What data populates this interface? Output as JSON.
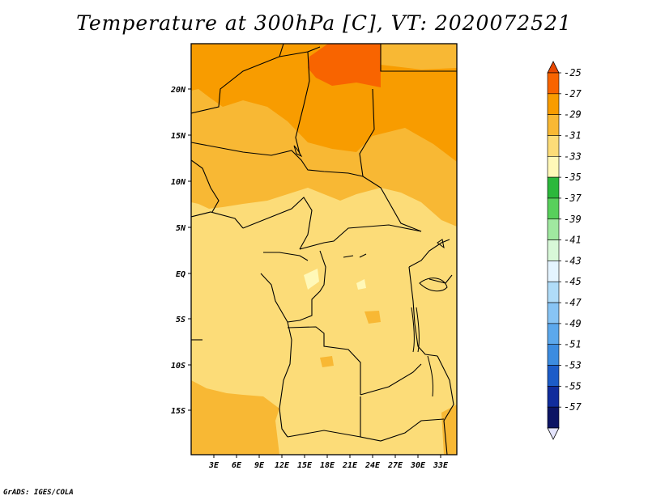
{
  "title": "Temperature at 300hPa [C], VT: 2020072521",
  "footer": "GrADS: IGES/COLA",
  "map": {
    "lon_labels": [
      "3E",
      "6E",
      "9E",
      "12E",
      "15E",
      "18E",
      "21E",
      "24E",
      "27E",
      "30E",
      "33E"
    ],
    "lat_labels": [
      "20N",
      "15N",
      "10N",
      "5N",
      "EQ",
      "5S",
      "10S",
      "15S"
    ]
  },
  "legend": {
    "levels": [
      {
        "label": "-25",
        "color": "#e84800"
      },
      {
        "label": "-27",
        "color": "#f86400"
      },
      {
        "label": "-29",
        "color": "#f89c00"
      },
      {
        "label": "-31",
        "color": "#f8b834"
      },
      {
        "label": "-33",
        "color": "#fcdc78"
      },
      {
        "label": "-35",
        "color": "#fff8b8"
      },
      {
        "label": "-37",
        "color": "#2cb83c"
      },
      {
        "label": "-39",
        "color": "#58d05c"
      },
      {
        "label": "-41",
        "color": "#a0e8a0"
      },
      {
        "label": "-43",
        "color": "#d8f8d8"
      },
      {
        "label": "-45",
        "color": "#e4f4ff"
      },
      {
        "label": "-47",
        "color": "#b0dcf8"
      },
      {
        "label": "-49",
        "color": "#88c4f4"
      },
      {
        "label": "-51",
        "color": "#5ca8ec"
      },
      {
        "label": "-53",
        "color": "#3c8ce0"
      },
      {
        "label": "-55",
        "color": "#1c5cc8"
      },
      {
        "label": "-57",
        "color": "#102c9c"
      },
      {
        "label": "",
        "color": "#0c1464"
      },
      {
        "label": "",
        "color": "#e4e4fc"
      }
    ]
  }
}
